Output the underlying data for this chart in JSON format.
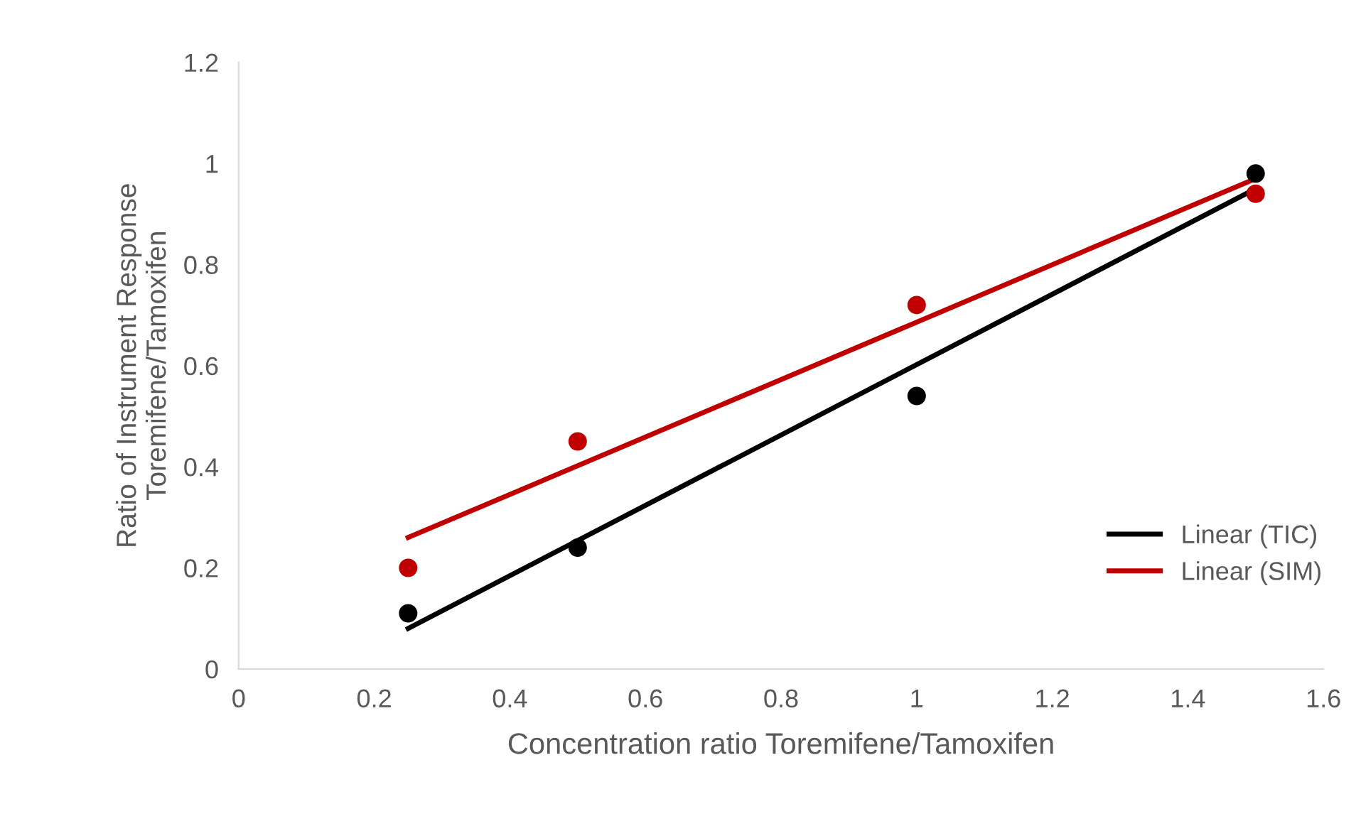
{
  "chart_data": {
    "type": "scatter",
    "xlabel": "Concentration ratio Toremifene/Tamoxifen",
    "ylabel": "Ratio of Instrument Response\nToremifene/Tamoxifen",
    "series": [
      {
        "color": "#000000",
        "marker": "circle",
        "x": [
          0.25,
          0.5,
          1,
          1.5
        ],
        "values": [
          0.11,
          0.24,
          0.54,
          0.98
        ]
      },
      {
        "color": "#c00000",
        "marker": "circle",
        "x": [
          0.25,
          0.5,
          1,
          1.5
        ],
        "values": [
          0.2,
          0.45,
          0.72,
          0.94
        ]
      },
      {
        "type": "line",
        "name": "Linear (TIC)",
        "color": "#000000",
        "line_style": "solid",
        "x": [
          0.25,
          1.5
        ],
        "values": [
          0.08,
          0.95
        ]
      },
      {
        "type": "line",
        "name": "Linear (SIM)",
        "color": "#c00000",
        "line_style": "solid",
        "x": [
          0.25,
          1.5
        ],
        "values": [
          0.26,
          0.97
        ]
      }
    ],
    "xlim": [
      0,
      1.6
    ],
    "xticks": [
      0,
      0.2,
      0.4,
      0.6,
      0.8,
      1,
      1.2,
      1.4,
      1.6
    ],
    "ylim": [
      0,
      1.2
    ],
    "yticks": [
      0,
      0.2,
      0.4,
      0.6,
      0.8,
      1,
      1.2
    ],
    "grid": false,
    "legend": "bottom right"
  }
}
